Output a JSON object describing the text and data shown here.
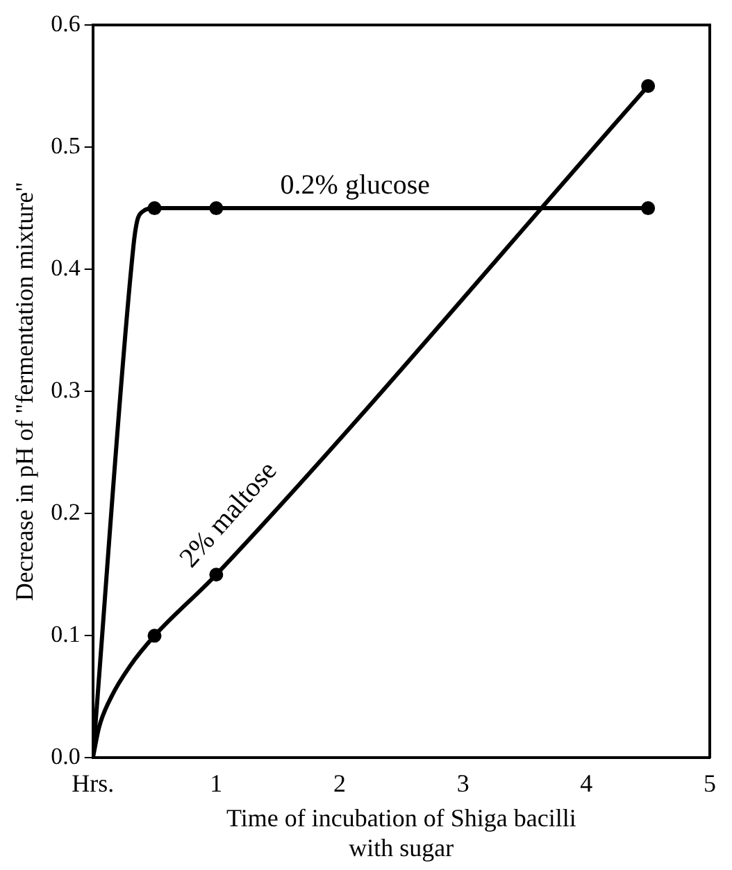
{
  "chart_data": {
    "type": "line",
    "xlabel": "Time of incubation of Shiga bacilli with sugar",
    "ylabel": "Decrease in pH of \"fermentation mixture\"",
    "xlim": [
      0,
      5
    ],
    "xticks": [
      {
        "value": 0,
        "label": "Hrs."
      },
      1,
      2,
      3,
      4,
      5
    ],
    "ylim": [
      0,
      0.6
    ],
    "yticks": [
      {
        "value": 0,
        "label": "0.0"
      },
      0.1,
      0.2,
      0.3,
      0.4,
      0.5,
      0.6
    ],
    "grid": false,
    "legend": false,
    "series": [
      {
        "name": "0.2% glucose",
        "color": "#000000",
        "marker": "none",
        "x": [
          0,
          0.33,
          0.36,
          0.4,
          0.5,
          1,
          4.5
        ],
        "values": [
          0,
          0.42,
          0.44,
          0.447,
          0.45,
          0.45,
          0.45
        ]
      },
      {
        "color": "#000000",
        "type": "scatter",
        "marker": "circle",
        "x": [
          0.5,
          1,
          4.5
        ],
        "values": [
          0.45,
          0.45,
          0.45
        ]
      },
      {
        "name": "2% maltose",
        "color": "#000000",
        "marker": "none",
        "x": [
          0,
          0.05,
          0.15,
          0.3,
          0.5,
          1,
          4.5
        ],
        "values": [
          0,
          0.025,
          0.05,
          0.075,
          0.1,
          0.15,
          0.55
        ]
      },
      {
        "color": "#000000",
        "type": "scatter",
        "marker": "circle",
        "x": [
          0.5,
          1,
          4.5
        ],
        "values": [
          0.1,
          0.15,
          0.55
        ]
      }
    ]
  }
}
